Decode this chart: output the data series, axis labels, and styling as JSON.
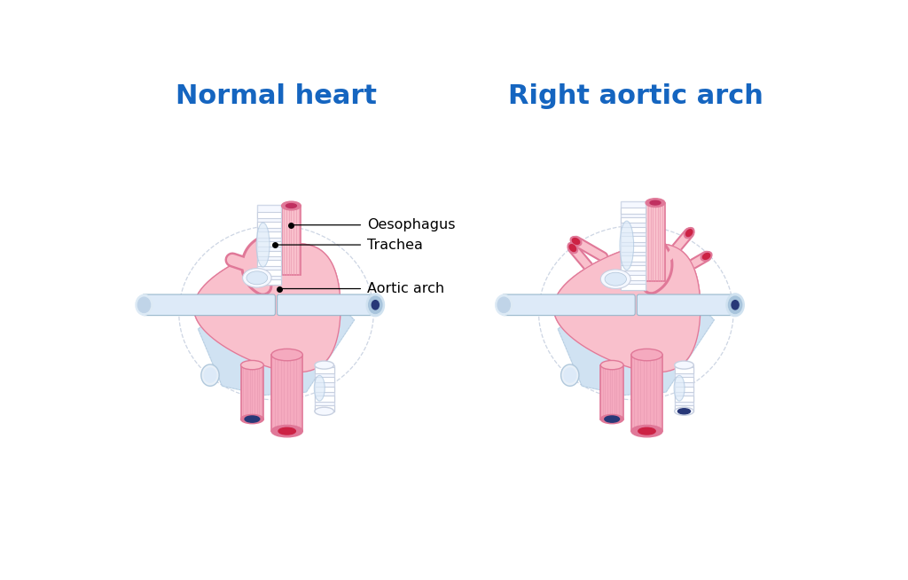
{
  "title_left": "Normal heart",
  "title_right": "Right aortic arch",
  "title_color": "#1565C0",
  "title_fontsize": 22,
  "title_fontweight": "bold",
  "bg_color": "#ffffff",
  "label_oesophagus": "Oesophagus",
  "label_trachea": "Trachea",
  "label_aortic_arch": "Aortic arch",
  "pink_light": "#fac8d5",
  "pink_medium": "#f0a0b8",
  "pink_dark": "#e07898",
  "pink_fill": "#f9c0cc",
  "pink_vessel": "#f5aabf",
  "blue_vessel": "#283878",
  "red_vessel": "#cc2244",
  "light_blue": "#c8ddf0",
  "light_blue2": "#ddeaf8",
  "trachea_white": "#f5f8ff",
  "stripe_color": "#e090aa",
  "dashed_color": "#b8c4d8",
  "oeso_stripe": "#e898b0"
}
